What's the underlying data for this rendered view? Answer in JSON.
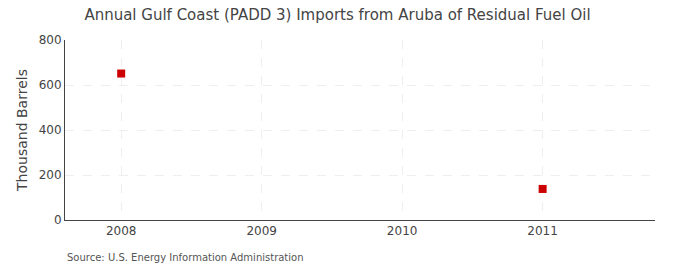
{
  "chart_data": {
    "type": "scatter",
    "title": "Annual Gulf Coast (PADD 3) Imports from Aruba of Residual Fuel Oil",
    "ylabel": "Thousand Barrels",
    "x": [
      2008,
      2011
    ],
    "values": [
      651,
      138
    ],
    "color": "#cc0000",
    "marker": "square",
    "xlim": [
      2007.6,
      2011.8
    ],
    "ylim": [
      0,
      800
    ],
    "xticks": [
      2008,
      2009,
      2010,
      2011
    ],
    "yticks": [
      0,
      200,
      400,
      600,
      800
    ],
    "grid": true,
    "annotations": [
      "Source: U.S. Energy Information Administration"
    ]
  }
}
